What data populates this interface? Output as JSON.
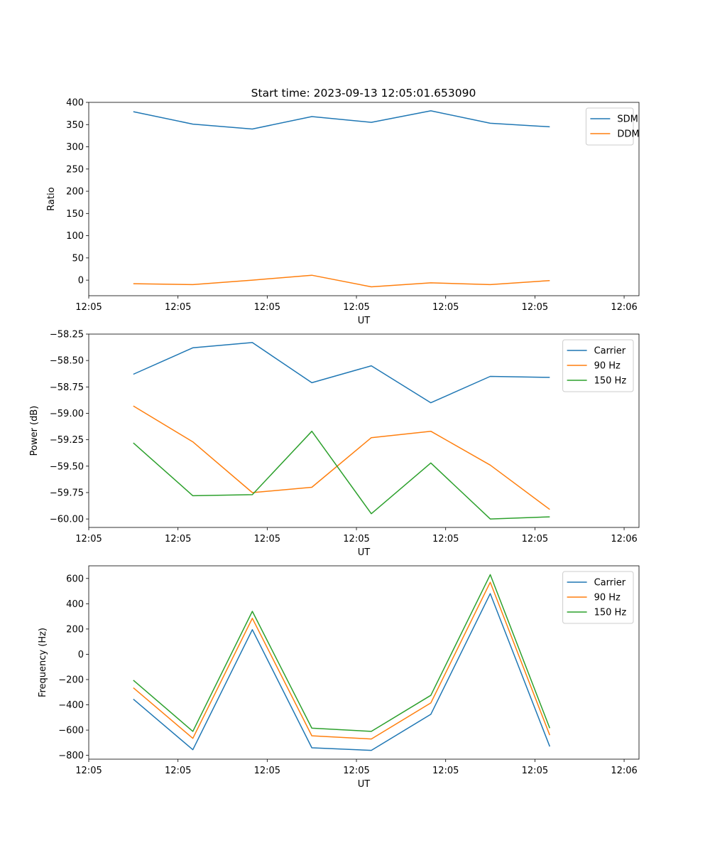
{
  "suptitle": "Start time: 2023-09-13 12:05:01.653090",
  "chart_data": [
    {
      "type": "line",
      "title": "Start time: 2023-09-13 12:05:01.653090",
      "xlabel": "UT",
      "ylabel": "Ratio",
      "x": [
        1,
        2,
        3,
        4,
        5,
        6,
        7,
        8
      ],
      "xlim": [
        0.25,
        9.5
      ],
      "xticks": [
        0.25,
        1.75,
        3.25,
        4.75,
        6.25,
        7.75,
        9.25
      ],
      "xtick_labels": [
        "12:05",
        "12:05",
        "12:05",
        "12:05",
        "12:05",
        "12:05",
        "12:06"
      ],
      "ylim": [
        -35,
        400
      ],
      "yticks": [
        0,
        50,
        100,
        150,
        200,
        250,
        300,
        350,
        400
      ],
      "ytick_labels": [
        "0",
        "50",
        "100",
        "150",
        "200",
        "250",
        "300",
        "350",
        "400"
      ],
      "legend": "top-right",
      "grid": false,
      "series": [
        {
          "name": "SDM",
          "color": "#1f77b4",
          "values": [
            379,
            351,
            340,
            368,
            355,
            381,
            353,
            345
          ]
        },
        {
          "name": "DDM",
          "color": "#ff7f0e",
          "values": [
            -8,
            -10,
            0,
            11,
            -15,
            -6,
            -10,
            -1
          ]
        }
      ]
    },
    {
      "type": "line",
      "title": "",
      "xlabel": "UT",
      "ylabel": "Power (dB)",
      "x": [
        1,
        2,
        3,
        4,
        5,
        6,
        7,
        8
      ],
      "xlim": [
        0.25,
        9.5
      ],
      "xticks": [
        0.25,
        1.75,
        3.25,
        4.75,
        6.25,
        7.75,
        9.25
      ],
      "xtick_labels": [
        "12:05",
        "12:05",
        "12:05",
        "12:05",
        "12:05",
        "12:05",
        "12:06"
      ],
      "ylim": [
        -60.08,
        -58.25
      ],
      "yticks": [
        -60.0,
        -59.75,
        -59.5,
        -59.25,
        -59.0,
        -58.75,
        -58.5,
        -58.25
      ],
      "ytick_labels": [
        "−60.00",
        "−59.75",
        "−59.50",
        "−59.25",
        "−59.00",
        "−58.75",
        "−58.50",
        "−58.25"
      ],
      "legend": "top-right",
      "grid": false,
      "series": [
        {
          "name": "Carrier",
          "color": "#1f77b4",
          "values": [
            -58.63,
            -58.38,
            -58.33,
            -58.71,
            -58.55,
            -58.9,
            -58.65,
            -58.66
          ]
        },
        {
          "name": "90 Hz",
          "color": "#ff7f0e",
          "values": [
            -58.93,
            -59.27,
            -59.75,
            -59.7,
            -59.23,
            -59.17,
            -59.49,
            -59.91
          ]
        },
        {
          "name": "150 Hz",
          "color": "#2ca02c",
          "values": [
            -59.28,
            -59.78,
            -59.77,
            -59.17,
            -59.95,
            -59.47,
            -60.0,
            -59.98
          ]
        }
      ]
    },
    {
      "type": "line",
      "title": "",
      "xlabel": "UT",
      "ylabel": "Frequency (Hz)",
      "x": [
        1,
        2,
        3,
        4,
        5,
        6,
        7,
        8
      ],
      "xlim": [
        0.25,
        9.5
      ],
      "xticks": [
        0.25,
        1.75,
        3.25,
        4.75,
        6.25,
        7.75,
        9.25
      ],
      "xtick_labels": [
        "12:05",
        "12:05",
        "12:05",
        "12:05",
        "12:05",
        "12:05",
        "12:06"
      ],
      "ylim": [
        -830,
        700
      ],
      "yticks": [
        -800,
        -600,
        -400,
        -200,
        0,
        200,
        400,
        600
      ],
      "ytick_labels": [
        "−800",
        "−600",
        "−400",
        "−200",
        "0",
        "200",
        "400",
        "600"
      ],
      "legend": "top-right",
      "grid": false,
      "series": [
        {
          "name": "Carrier",
          "color": "#1f77b4",
          "values": [
            -355,
            -755,
            195,
            -740,
            -760,
            -475,
            480,
            -730
          ]
        },
        {
          "name": "90 Hz",
          "color": "#ff7f0e",
          "values": [
            -265,
            -665,
            285,
            -645,
            -670,
            -385,
            570,
            -640
          ]
        },
        {
          "name": "150 Hz",
          "color": "#2ca02c",
          "values": [
            -205,
            -610,
            340,
            -585,
            -610,
            -325,
            630,
            -585
          ]
        }
      ]
    }
  ]
}
